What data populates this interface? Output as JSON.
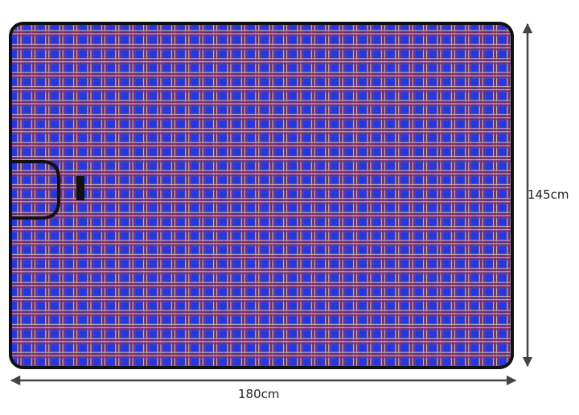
{
  "dimensions": {
    "width_label": "180cm",
    "height_label": "145cm"
  },
  "colors": {
    "blanket_base": "#2438e0",
    "stripe_red": "#8a2050",
    "stripe_light": "#e8d8b0",
    "border": "#111111",
    "arrow": "#444444"
  }
}
